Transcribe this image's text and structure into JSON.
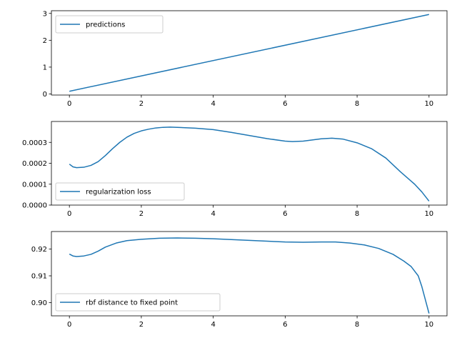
{
  "chart_data": [
    {
      "type": "line",
      "xlim": [
        -0.5,
        10.5
      ],
      "ylim": [
        -0.04,
        3.1
      ],
      "xticks": [
        0,
        2,
        4,
        6,
        8,
        10
      ],
      "xtick_labels": [
        "0",
        "2",
        "4",
        "6",
        "8",
        "10"
      ],
      "yticks": [
        0,
        1,
        2,
        3
      ],
      "ytick_labels": [
        "0",
        "1",
        "2",
        "3"
      ],
      "grid": false,
      "legend_position": "upper-left",
      "series": [
        {
          "name": "predictions",
          "color": "#1f77b4",
          "x": [
            0,
            10
          ],
          "y": [
            0.1,
            2.96
          ]
        }
      ]
    },
    {
      "type": "line",
      "xlim": [
        -0.5,
        10.5
      ],
      "ylim": [
        0,
        0.0004
      ],
      "xticks": [
        0,
        2,
        4,
        6,
        8,
        10
      ],
      "xtick_labels": [
        "0",
        "2",
        "4",
        "6",
        "8",
        "10"
      ],
      "yticks": [
        0,
        0.0001,
        0.0002,
        0.0003
      ],
      "ytick_labels": [
        "0.0000",
        "0.0001",
        "0.0002",
        "0.0003"
      ],
      "grid": false,
      "legend_position": "lower-left",
      "series": [
        {
          "name": "regularization loss",
          "color": "#1f77b4",
          "x": [
            0,
            0.1,
            0.2,
            0.4,
            0.6,
            0.8,
            1.0,
            1.2,
            1.4,
            1.6,
            1.8,
            2.0,
            2.2,
            2.4,
            2.6,
            2.8,
            3.0,
            3.5,
            4.0,
            4.5,
            5.0,
            5.5,
            6.0,
            6.2,
            6.5,
            7.0,
            7.3,
            7.6,
            8.0,
            8.4,
            8.8,
            9.2,
            9.6,
            9.8,
            10.0
          ],
          "y": [
            0.000196,
            0.000183,
            0.000179,
            0.000181,
            0.00019,
            0.000208,
            0.000237,
            0.00027,
            0.0003,
            0.000325,
            0.000343,
            0.000355,
            0.000363,
            0.000369,
            0.000372,
            0.000373,
            0.000372,
            0.000368,
            0.000361,
            0.000348,
            0.000333,
            0.000318,
            0.000306,
            0.000304,
            0.000306,
            0.000317,
            0.00032,
            0.000316,
            0.000298,
            0.00027,
            0.000225,
            0.00016,
            0.0001,
            6.3e-05,
            1.9e-05
          ]
        }
      ]
    },
    {
      "type": "line",
      "xlim": [
        -0.5,
        10.5
      ],
      "ylim": [
        0.8951,
        0.9265
      ],
      "xticks": [
        0,
        2,
        4,
        6,
        8,
        10
      ],
      "xtick_labels": [
        "0",
        "2",
        "4",
        "6",
        "8",
        "10"
      ],
      "yticks": [
        0.9,
        0.91,
        0.92
      ],
      "ytick_labels": [
        "0.90",
        "0.91",
        "0.92"
      ],
      "grid": false,
      "legend_position": "lower-left",
      "series": [
        {
          "name": "rbf distance to fixed point",
          "color": "#1f77b4",
          "x": [
            0,
            0.1,
            0.2,
            0.4,
            0.6,
            0.8,
            1.0,
            1.3,
            1.6,
            2.0,
            2.5,
            3.0,
            3.5,
            4.0,
            4.5,
            5.0,
            5.5,
            6.0,
            6.5,
            7.0,
            7.4,
            7.8,
            8.2,
            8.6,
            9.0,
            9.3,
            9.5,
            9.7,
            9.8,
            9.9,
            10.0
          ],
          "y": [
            0.9181,
            0.9174,
            0.9172,
            0.9174,
            0.918,
            0.9192,
            0.9207,
            0.9222,
            0.9231,
            0.9236,
            0.924,
            0.9241,
            0.924,
            0.9238,
            0.9235,
            0.9232,
            0.9229,
            0.9226,
            0.9225,
            0.9226,
            0.9226,
            0.9222,
            0.9215,
            0.9202,
            0.918,
            0.9155,
            0.9135,
            0.91,
            0.906,
            0.901,
            0.896
          ]
        }
      ]
    }
  ]
}
